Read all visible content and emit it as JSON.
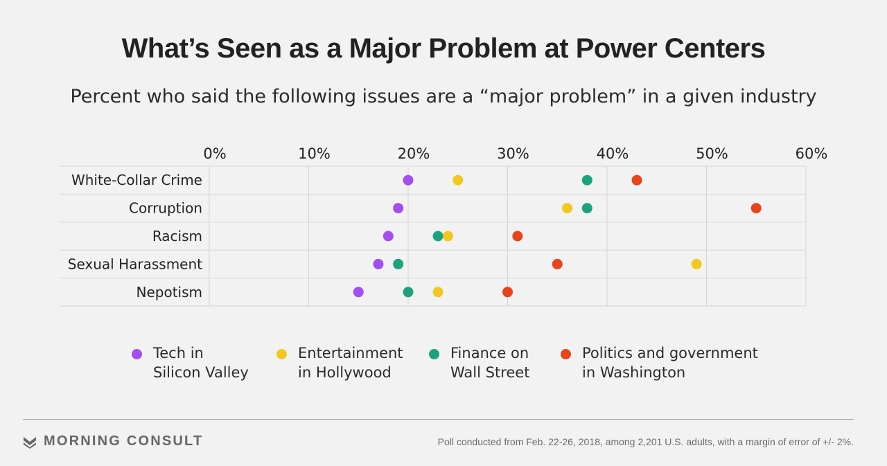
{
  "header": {
    "title": "What’s Seen as a Major Problem at Power Centers",
    "subtitle": "Percent who said the following issues are a “major problem” in a given industry"
  },
  "chart_data": {
    "type": "scatter",
    "xlim": [
      0,
      60
    ],
    "x_ticks": [
      0,
      10,
      20,
      30,
      40,
      50,
      60
    ],
    "x_tick_labels": [
      "0%",
      "10%",
      "20%",
      "30%",
      "40%",
      "50%",
      "60%"
    ],
    "grid": true,
    "legend_position": "bottom",
    "categories": [
      "White-Collar Crime",
      "Corruption",
      "Racism",
      "Sexual Harassment",
      "Nepotism"
    ],
    "series": [
      {
        "name": "Tech in Silicon Valley",
        "color": "#a24ef0",
        "values": [
          20,
          19,
          18,
          17,
          15
        ]
      },
      {
        "name": "Entertainment in Hollywood",
        "color": "#f2c81e",
        "values": [
          25,
          36,
          24,
          49,
          23
        ]
      },
      {
        "name": "Finance on Wall Street",
        "color": "#1ba37d",
        "values": [
          38,
          38,
          23,
          19,
          20
        ]
      },
      {
        "name": "Politics and government in Washington",
        "color": "#e8431b",
        "values": [
          43,
          55,
          31,
          35,
          30
        ]
      }
    ]
  },
  "legend": {
    "items": [
      {
        "line1": "Tech in",
        "line2": "Silicon Valley",
        "color": "#a24ef0"
      },
      {
        "line1": "Entertainment",
        "line2": "in Hollywood",
        "color": "#f2c81e"
      },
      {
        "line1": "Finance on",
        "line2": "Wall Street",
        "color": "#1ba37d"
      },
      {
        "line1": "Politics and government",
        "line2": "in Washington",
        "color": "#e8431b"
      }
    ]
  },
  "footer": {
    "brand": "MORNING CONSULT",
    "brand_icon": "chevron-logo-icon",
    "note": "Poll conducted from Feb. 22-26, 2018, among 2,201 U.S. adults, with a margin of error of +/- 2%."
  }
}
